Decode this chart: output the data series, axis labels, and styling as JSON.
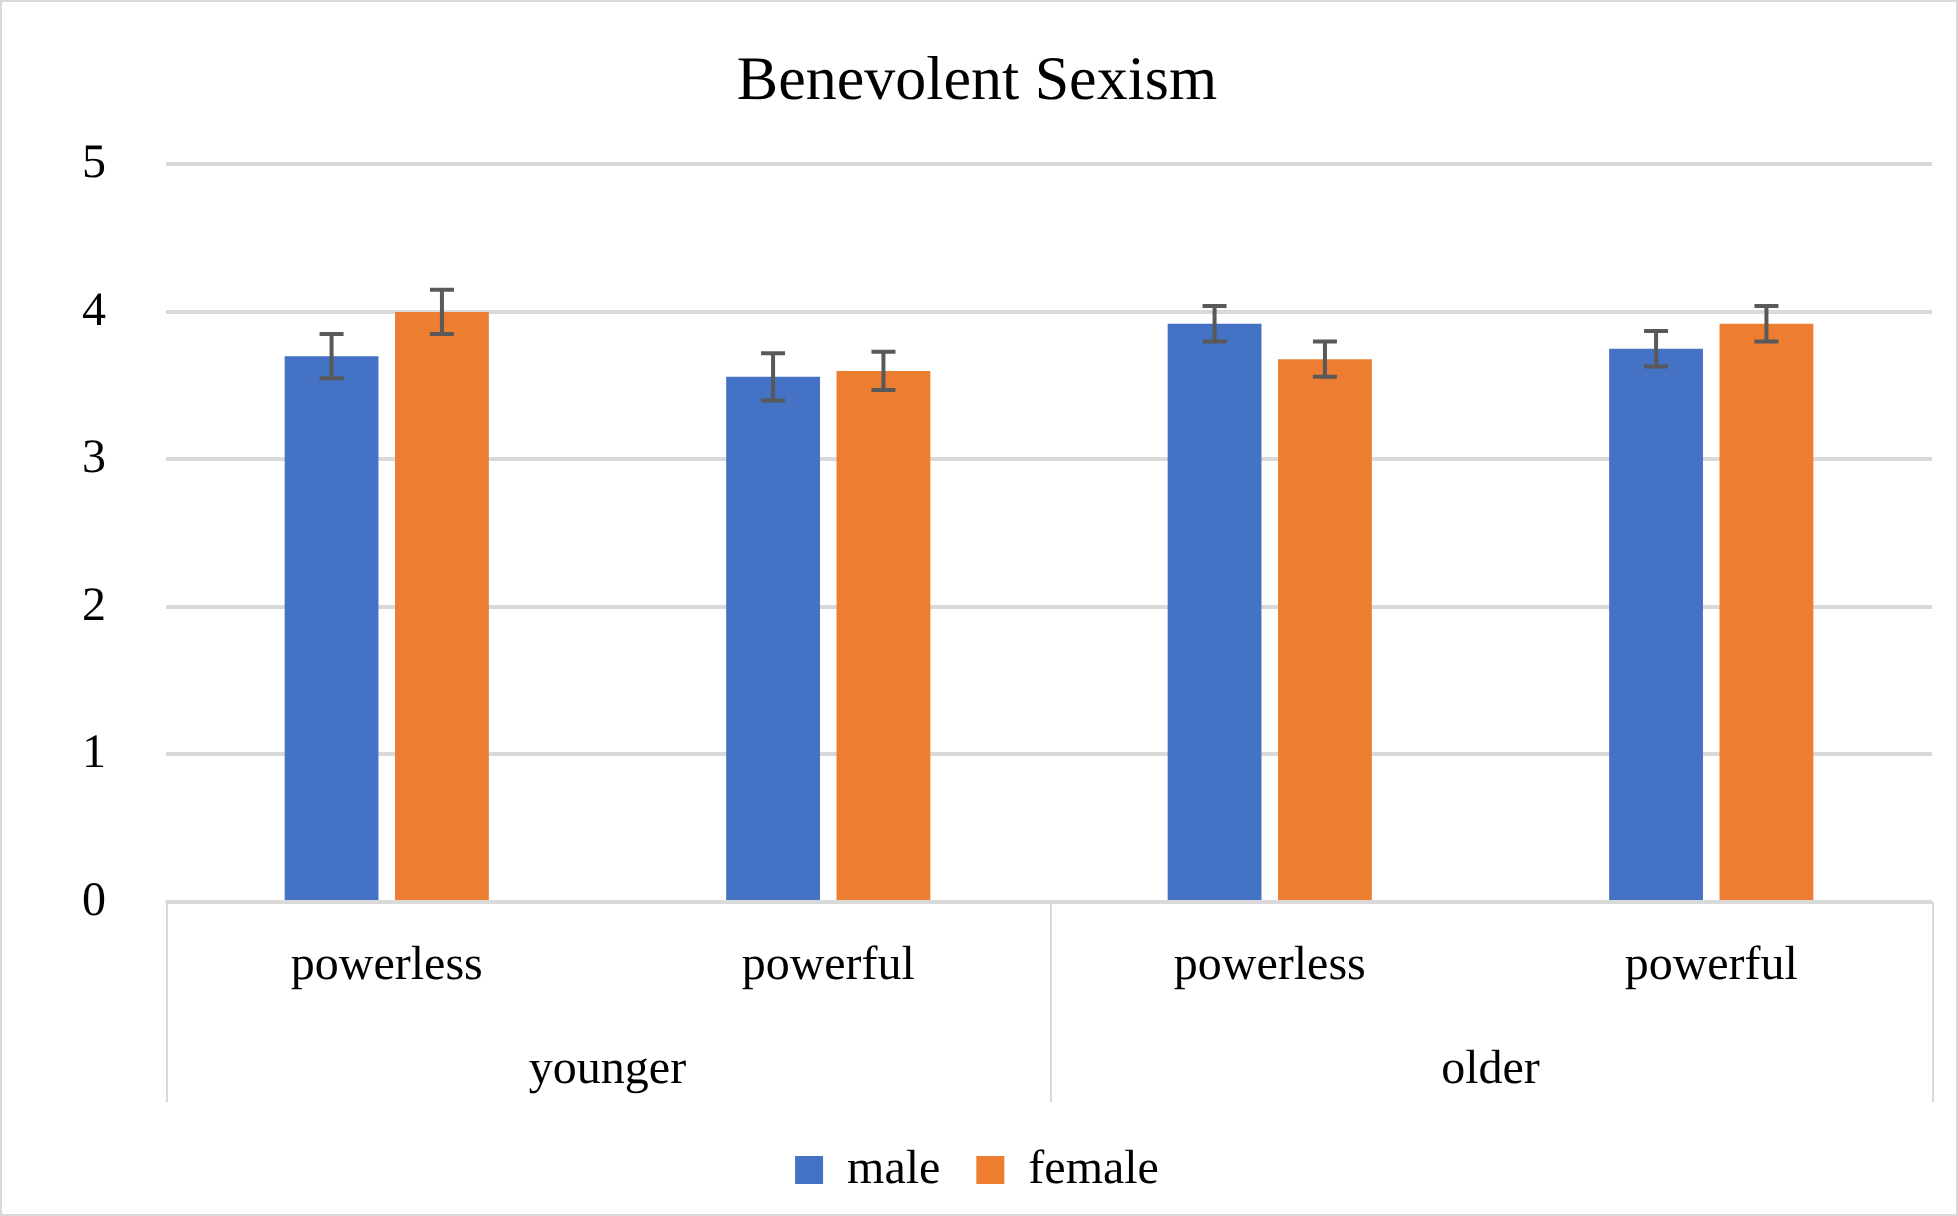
{
  "chart_data": {
    "type": "bar",
    "title": "Benevolent Sexism",
    "categories": [
      "powerless",
      "powerful",
      "powerless",
      "powerful"
    ],
    "annotations": [
      "younger",
      "older"
    ],
    "series": [
      {
        "name": "male",
        "color": "#4472c4",
        "values": [
          3.7,
          3.56,
          3.92,
          3.75
        ],
        "errors": [
          0.15,
          0.16,
          0.12,
          0.12
        ]
      },
      {
        "name": "female",
        "color": "#ed7d31",
        "values": [
          4.0,
          3.6,
          3.68,
          3.92
        ],
        "errors": [
          0.15,
          0.13,
          0.12,
          0.12
        ]
      }
    ],
    "ylim": [
      0,
      5
    ],
    "yticks": [
      0,
      1,
      2,
      3,
      4,
      5
    ],
    "grid": "y",
    "legend": "bottom"
  }
}
